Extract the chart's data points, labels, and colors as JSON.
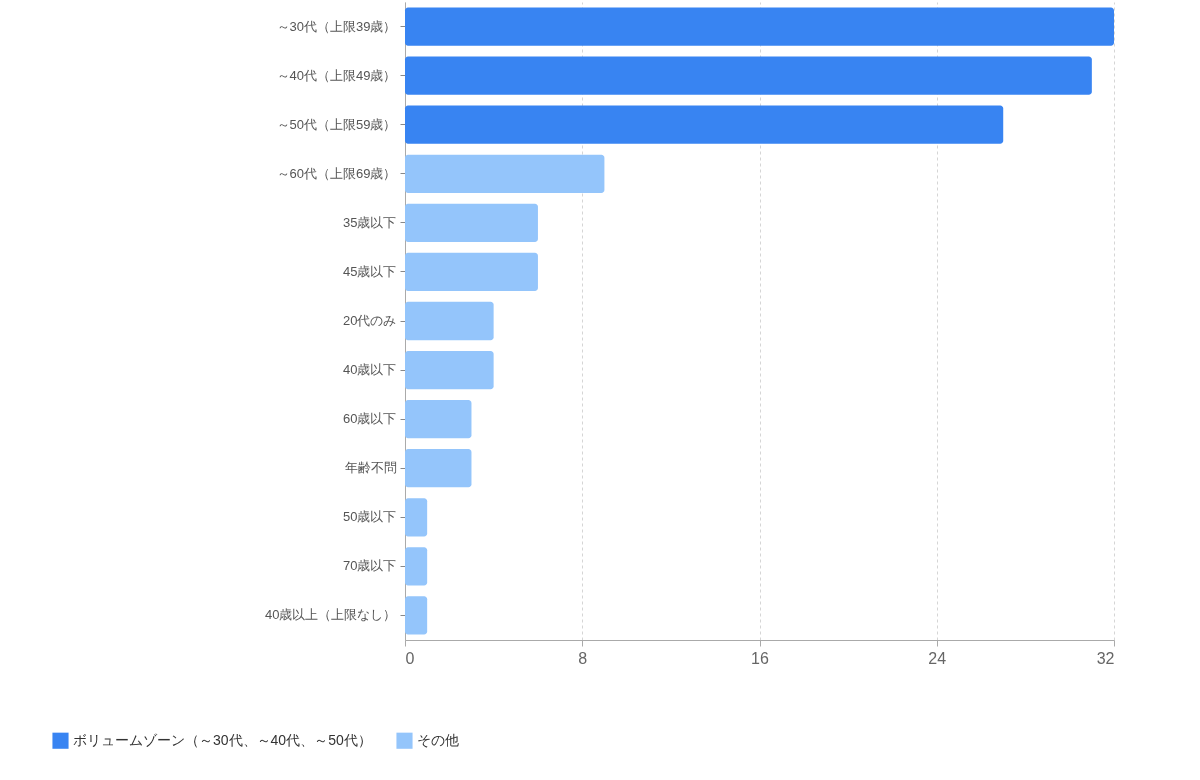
{
  "chart_data": {
    "type": "bar",
    "orientation": "horizontal",
    "categories": [
      "～30代（上限39歳）",
      "～40代（上限49歳）",
      "～50代（上限59歳）",
      "～60代（上限69歳）",
      "35歳以下",
      "45歳以下",
      "20代のみ",
      "40歳以下",
      "60歳以下",
      "年齢不問",
      "50歳以下",
      "70歳以下",
      "40歳以上（上限なし）"
    ],
    "series": [
      {
        "name": "ボリュームゾーン（～30代、～40代、～50代）",
        "color": "#3884f2",
        "values": [
          32,
          31,
          27,
          null,
          null,
          null,
          null,
          null,
          null,
          null,
          null,
          null,
          null
        ]
      },
      {
        "name": "その他",
        "color": "#94c5fb",
        "values": [
          null,
          null,
          null,
          9,
          6,
          6,
          4,
          4,
          3,
          3,
          1,
          1,
          1
        ]
      }
    ],
    "xlim": [
      0,
      32
    ],
    "xticks": [
      0,
      8,
      16,
      24,
      32
    ],
    "grid": "x",
    "legend": "bottom left"
  }
}
